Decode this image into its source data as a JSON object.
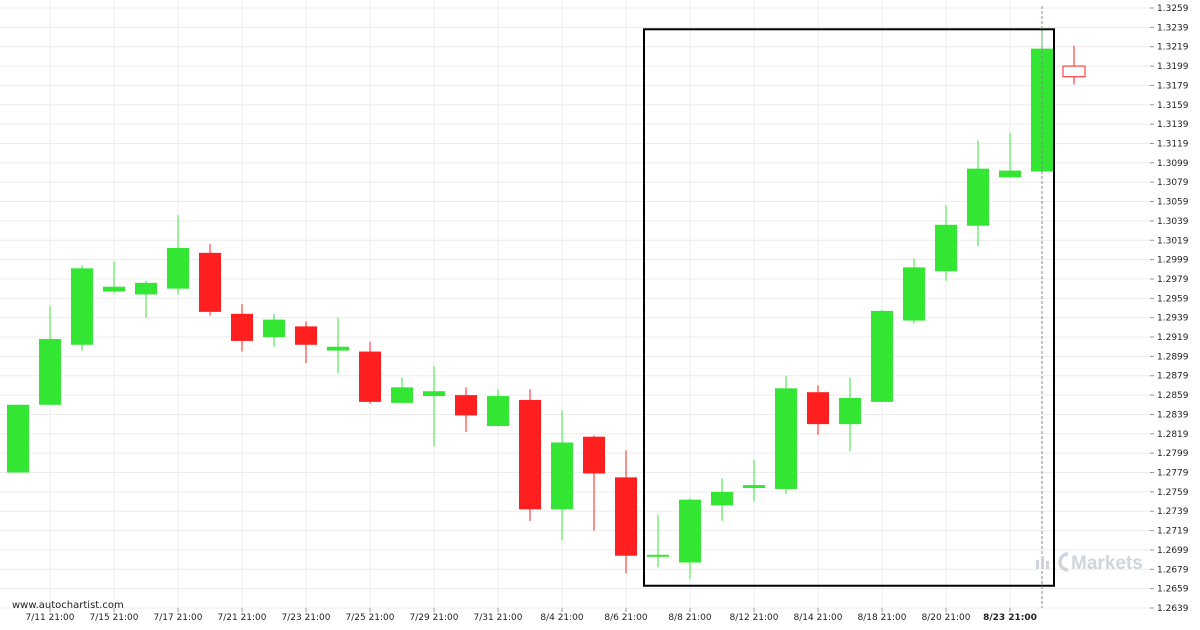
{
  "chart_data": {
    "type": "candlestick",
    "title": "",
    "xlabel": "",
    "ylabel": "",
    "ylim": [
      1.2639,
      1.3259
    ],
    "y_ticks": [
      "1.3259",
      "1.3239",
      "1.3219",
      "1.3199",
      "1.3179",
      "1.3159",
      "1.3139",
      "1.3119",
      "1.3099",
      "1.3079",
      "1.3059",
      "1.3039",
      "1.3019",
      "1.2999",
      "1.2979",
      "1.2959",
      "1.2939",
      "1.2919",
      "1.2899",
      "1.2879",
      "1.2859",
      "1.2839",
      "1.2819",
      "1.2799",
      "1.2779",
      "1.2759",
      "1.2739",
      "1.2719",
      "1.2699",
      "1.2679",
      "1.2659",
      "1.2639"
    ],
    "x_ticks": [
      {
        "label": "7/11 21:00",
        "index": 1
      },
      {
        "label": "7/15 21:00",
        "index": 3
      },
      {
        "label": "7/17 21:00",
        "index": 5
      },
      {
        "label": "7/21 21:00",
        "index": 7
      },
      {
        "label": "7/23 21:00",
        "index": 9
      },
      {
        "label": "7/25 21:00",
        "index": 11
      },
      {
        "label": "7/29 21:00",
        "index": 13
      },
      {
        "label": "7/31 21:00",
        "index": 15
      },
      {
        "label": "8/4 21:00",
        "index": 17
      },
      {
        "label": "8/6 21:00",
        "index": 19
      },
      {
        "label": "8/8 21:00",
        "index": 21
      },
      {
        "label": "8/12 21:00",
        "index": 23
      },
      {
        "label": "8/14 21:00",
        "index": 25
      },
      {
        "label": "8/18 21:00",
        "index": 27
      },
      {
        "label": "8/20 21:00",
        "index": 29
      },
      {
        "label": "8/23 21:00",
        "index": 31,
        "bold": true
      }
    ],
    "candles": [
      {
        "o": 1.2779,
        "h": 1.2849,
        "l": 1.2779,
        "c": 1.2849,
        "dir": "up"
      },
      {
        "o": 1.2849,
        "h": 1.2951,
        "l": 1.2849,
        "c": 1.2917,
        "dir": "up"
      },
      {
        "o": 1.2911,
        "h": 1.2993,
        "l": 1.2905,
        "c": 1.299,
        "dir": "up"
      },
      {
        "o": 1.2966,
        "h": 1.2997,
        "l": 1.2964,
        "c": 1.2971,
        "dir": "up"
      },
      {
        "o": 1.2963,
        "h": 1.2977,
        "l": 1.2939,
        "c": 1.2975,
        "dir": "up"
      },
      {
        "o": 1.2969,
        "h": 1.3045,
        "l": 1.2963,
        "c": 1.3011,
        "dir": "up"
      },
      {
        "o": 1.3006,
        "h": 1.3015,
        "l": 1.2941,
        "c": 1.2945,
        "dir": "down"
      },
      {
        "o": 1.2943,
        "h": 1.2953,
        "l": 1.2904,
        "c": 1.2915,
        "dir": "down"
      },
      {
        "o": 1.2919,
        "h": 1.2943,
        "l": 1.2909,
        "c": 1.2937,
        "dir": "up"
      },
      {
        "o": 1.293,
        "h": 1.2935,
        "l": 1.2892,
        "c": 1.2911,
        "dir": "down"
      },
      {
        "o": 1.2905,
        "h": 1.2939,
        "l": 1.2882,
        "c": 1.2909,
        "dir": "up"
      },
      {
        "o": 1.2904,
        "h": 1.2914,
        "l": 1.285,
        "c": 1.2852,
        "dir": "down"
      },
      {
        "o": 1.2851,
        "h": 1.2877,
        "l": 1.2851,
        "c": 1.2867,
        "dir": "up"
      },
      {
        "o": 1.2858,
        "h": 1.2889,
        "l": 1.2806,
        "c": 1.2863,
        "dir": "up"
      },
      {
        "o": 1.2859,
        "h": 1.2867,
        "l": 1.2821,
        "c": 1.2838,
        "dir": "down"
      },
      {
        "o": 1.2827,
        "h": 1.2865,
        "l": 1.2827,
        "c": 1.2858,
        "dir": "up"
      },
      {
        "o": 1.2854,
        "h": 1.2865,
        "l": 1.2729,
        "c": 1.2741,
        "dir": "down"
      },
      {
        "o": 1.2741,
        "h": 1.2843,
        "l": 1.2709,
        "c": 1.281,
        "dir": "up"
      },
      {
        "o": 1.2816,
        "h": 1.2817,
        "l": 1.2719,
        "c": 1.2778,
        "dir": "down"
      },
      {
        "o": 1.2774,
        "h": 1.2802,
        "l": 1.2675,
        "c": 1.2693,
        "dir": "down"
      },
      {
        "o": 1.2693,
        "h": 1.2735,
        "l": 1.2681,
        "c": 1.2694,
        "dir": "up"
      },
      {
        "o": 1.2686,
        "h": 1.2752,
        "l": 1.2669,
        "c": 1.2751,
        "dir": "up"
      },
      {
        "o": 1.2745,
        "h": 1.2773,
        "l": 1.2729,
        "c": 1.2759,
        "dir": "up"
      },
      {
        "o": 1.2763,
        "h": 1.2792,
        "l": 1.2749,
        "c": 1.2766,
        "dir": "up"
      },
      {
        "o": 1.2762,
        "h": 1.2879,
        "l": 1.2757,
        "c": 1.2866,
        "dir": "up"
      },
      {
        "o": 1.2862,
        "h": 1.2869,
        "l": 1.2818,
        "c": 1.2829,
        "dir": "down"
      },
      {
        "o": 1.2829,
        "h": 1.2877,
        "l": 1.2801,
        "c": 1.2856,
        "dir": "up"
      },
      {
        "o": 1.2852,
        "h": 1.2947,
        "l": 1.2852,
        "c": 1.2946,
        "dir": "up"
      },
      {
        "o": 1.2936,
        "h": 1.3,
        "l": 1.2933,
        "c": 1.2991,
        "dir": "up"
      },
      {
        "o": 1.2987,
        "h": 1.3055,
        "l": 1.2977,
        "c": 1.3035,
        "dir": "up"
      },
      {
        "o": 1.3034,
        "h": 1.3122,
        "l": 1.3013,
        "c": 1.3093,
        "dir": "up"
      },
      {
        "o": 1.3084,
        "h": 1.313,
        "l": 1.3084,
        "c": 1.3091,
        "dir": "up"
      },
      {
        "o": 1.309,
        "h": 1.3239,
        "l": 1.309,
        "c": 1.3217,
        "dir": "up"
      },
      {
        "o": 1.3199,
        "h": 1.322,
        "l": 1.318,
        "c": 1.3188,
        "dir": "down-hollow"
      }
    ],
    "highlight_box": {
      "from_index": 20,
      "to_index": 32,
      "y_top": 1.3237,
      "y_bottom": 1.2662
    },
    "vertical_marker_index": 32,
    "colors": {
      "up": "#33e633",
      "down": "#ff1f1f",
      "grid": "#ececec",
      "box": "#000000",
      "marker": "#888888",
      "text": "#222222",
      "brand": "#d0d5dc"
    },
    "grid": true
  },
  "watermark": {
    "site": "www.autochartist.com",
    "brand": "Markets"
  }
}
